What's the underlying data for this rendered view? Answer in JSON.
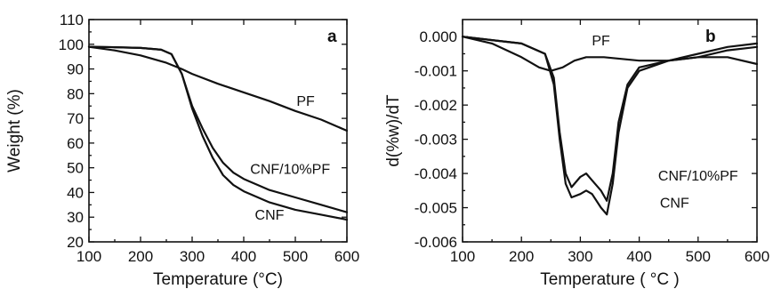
{
  "chart_data": [
    {
      "panel": "a",
      "type": "line",
      "xlabel": "Temperature (°C)",
      "ylabel": "Weight (%)",
      "xlim": [
        100,
        600
      ],
      "ylim": [
        20,
        110
      ],
      "xticks": [
        100,
        200,
        300,
        400,
        500,
        600
      ],
      "yticks": [
        20,
        30,
        40,
        50,
        60,
        70,
        80,
        90,
        100,
        110
      ],
      "grid": false,
      "series": [
        {
          "name": "PF",
          "x": [
            100,
            150,
            200,
            250,
            280,
            300,
            350,
            400,
            450,
            500,
            550,
            600
          ],
          "y": [
            99,
            97.5,
            95.5,
            92.5,
            90,
            88,
            84,
            80.5,
            77,
            73,
            69.5,
            65
          ]
        },
        {
          "name": "CNF/10%PF",
          "x": [
            100,
            150,
            200,
            240,
            260,
            280,
            300,
            320,
            340,
            360,
            380,
            400,
            450,
            500,
            550,
            600
          ],
          "y": [
            99,
            98.8,
            98.5,
            97.8,
            96,
            88,
            75,
            66,
            58,
            52,
            48,
            45.5,
            41,
            38,
            35,
            32
          ]
        },
        {
          "name": "CNF",
          "x": [
            100,
            150,
            200,
            240,
            260,
            280,
            300,
            320,
            340,
            360,
            380,
            400,
            450,
            500,
            550,
            600
          ],
          "y": [
            99,
            98.8,
            98.5,
            97.8,
            96,
            88,
            74,
            63,
            54,
            47,
            43,
            40.5,
            36,
            33,
            31,
            29
          ]
        }
      ],
      "annotations": [
        {
          "text": "PF",
          "x": 520,
          "y": 75
        },
        {
          "text": "CNF/10%PF",
          "x": 490,
          "y": 47.5
        },
        {
          "text": "CNF",
          "x": 450,
          "y": 29
        }
      ]
    },
    {
      "panel": "b",
      "type": "line",
      "xlabel": "Temperature ( °C )",
      "ylabel": "d(%w)/dT",
      "xlim": [
        100,
        600
      ],
      "ylim": [
        -0.006,
        0.0005
      ],
      "xticks": [
        100,
        200,
        300,
        400,
        500,
        600
      ],
      "yticks": [
        0.0,
        -0.001,
        -0.002,
        -0.003,
        -0.004,
        -0.005,
        -0.006
      ],
      "ytick_labels": [
        "0.000",
        "-0.001",
        "-0.002",
        "-0.003",
        "-0.004",
        "-0.005",
        "-0.006"
      ],
      "grid": false,
      "series": [
        {
          "name": "PF",
          "x": [
            100,
            150,
            200,
            230,
            250,
            270,
            290,
            310,
            340,
            400,
            450,
            500,
            550,
            600
          ],
          "y": [
            0.0,
            -0.0002,
            -0.0006,
            -0.0009,
            -0.001,
            -0.0009,
            -0.0007,
            -0.0006,
            -0.0006,
            -0.0007,
            -0.0007,
            -0.0006,
            -0.0006,
            -0.0008
          ]
        },
        {
          "name": "CNF/10%PF",
          "x": [
            100,
            150,
            200,
            240,
            255,
            265,
            275,
            285,
            300,
            310,
            320,
            335,
            345,
            355,
            365,
            380,
            400,
            450,
            500,
            550,
            600
          ],
          "y": [
            0.0,
            -0.0001,
            -0.0002,
            -0.0005,
            -0.0012,
            -0.0028,
            -0.004,
            -0.0044,
            -0.0041,
            -0.004,
            -0.0042,
            -0.0045,
            -0.0048,
            -0.004,
            -0.0025,
            -0.0014,
            -0.0009,
            -0.0007,
            -0.0005,
            -0.0003,
            -0.0002
          ]
        },
        {
          "name": "CNF",
          "x": [
            100,
            150,
            200,
            240,
            255,
            265,
            275,
            285,
            300,
            310,
            320,
            335,
            345,
            355,
            365,
            380,
            400,
            450,
            500,
            550,
            600
          ],
          "y": [
            0.0,
            -0.0001,
            -0.0002,
            -0.0005,
            -0.0014,
            -0.003,
            -0.0043,
            -0.0047,
            -0.0046,
            -0.0045,
            -0.0046,
            -0.005,
            -0.0052,
            -0.0043,
            -0.0028,
            -0.0015,
            -0.001,
            -0.0007,
            -0.0006,
            -0.0004,
            -0.0003
          ]
        }
      ],
      "annotations": [
        {
          "text": "PF",
          "x": 335,
          "y": -0.00025
        },
        {
          "text": "CNF/10%PF",
          "x": 500,
          "y": -0.0042
        },
        {
          "text": "CNF",
          "x": 460,
          "y": -0.005
        }
      ]
    }
  ]
}
